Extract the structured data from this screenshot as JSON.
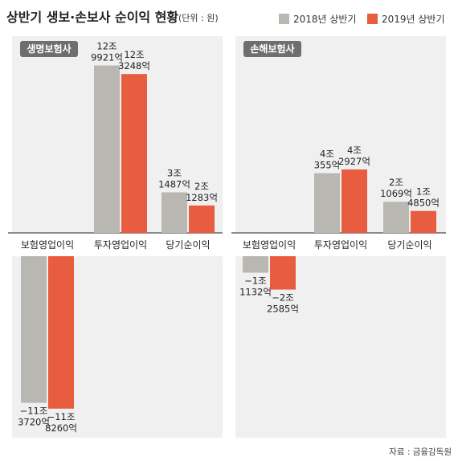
{
  "chart_data": {
    "type": "bar",
    "title": "상반기 생보·손보사 순이익 현황",
    "unit": "(단위 : 원)",
    "source": "자료 : 금융감독원",
    "legend": [
      "2018년 상반기",
      "2019년 상반기"
    ],
    "colors": {
      "2018": "#b8b7b2",
      "2019": "#e85c3f",
      "panel_bg": "#f0f0f0",
      "label_bg": "#6e6e6e"
    },
    "panels": [
      {
        "label": "생명보험사",
        "categories": [
          "보험영업이익",
          "투자영업이익",
          "당기순이익"
        ],
        "series": [
          {
            "name": "2018년 상반기",
            "values": [
              -11.372,
              12.9921,
              3.1487
            ],
            "labels": [
              [
                "−11조",
                "3720억"
              ],
              [
                "12조",
                "9921억"
              ],
              [
                "3조",
                "1487억"
              ]
            ]
          },
          {
            "name": "2019년 상반기",
            "values": [
              -11.826,
              12.3248,
              2.1283
            ],
            "labels": [
              [
                "−11조",
                "8260억"
              ],
              [
                "12조",
                "3248억"
              ],
              [
                "2조",
                "1283억"
              ]
            ]
          }
        ]
      },
      {
        "label": "손해보험사",
        "categories": [
          "보험영업이익",
          "투자영업이익",
          "당기순이익"
        ],
        "series": [
          {
            "name": "2018년 상반기",
            "values": [
              -1.1132,
              4.0355,
              2.1069
            ],
            "labels": [
              [
                "−1조",
                "1132억"
              ],
              [
                "4조",
                "355억"
              ],
              [
                "2조",
                "1069억"
              ]
            ]
          },
          {
            "name": "2019년 상반기",
            "values": [
              -2.2585,
              4.2927,
              1.485
            ],
            "labels": [
              [
                "−2조",
                "2585억"
              ],
              [
                "4조",
                "2927억"
              ],
              [
                "1조",
                "4850억"
              ]
            ]
          }
        ]
      }
    ]
  }
}
